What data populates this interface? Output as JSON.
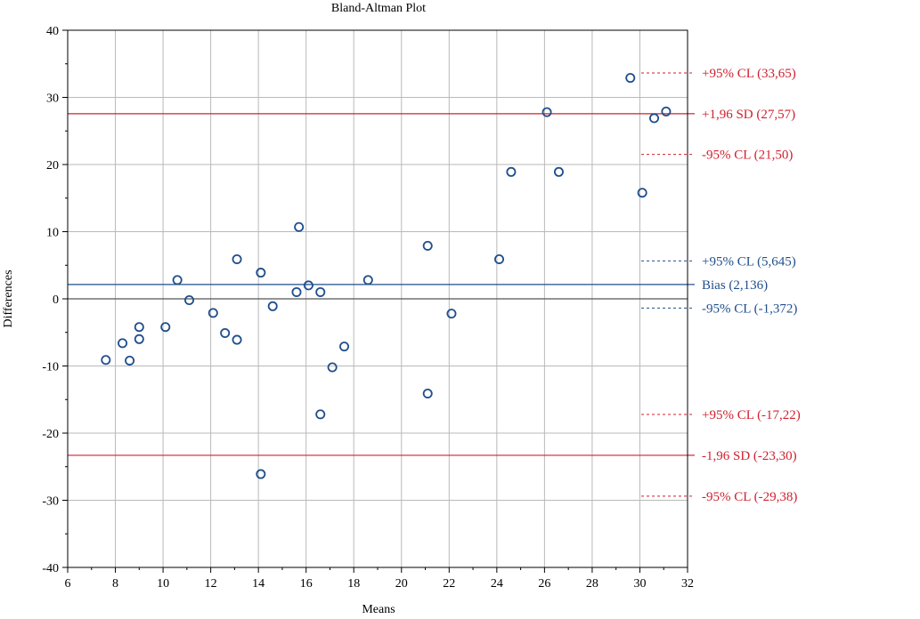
{
  "chart_data": {
    "type": "scatter",
    "title": "Bland-Altman Plot",
    "xlabel": "Means",
    "ylabel": "Differences",
    "xlim": [
      6,
      32
    ],
    "ylim": [
      -40,
      40
    ],
    "x_ticks": [
      6,
      8,
      10,
      12,
      14,
      16,
      18,
      20,
      22,
      24,
      26,
      28,
      30,
      32
    ],
    "y_ticks": [
      -40,
      -30,
      -20,
      -10,
      0,
      10,
      20,
      30,
      40
    ],
    "grid": true,
    "point_color": "#1f4e8c",
    "points": [
      {
        "x": 7.6,
        "y": -9.1
      },
      {
        "x": 8.3,
        "y": -6.6
      },
      {
        "x": 8.6,
        "y": -9.2
      },
      {
        "x": 9.0,
        "y": -4.2
      },
      {
        "x": 9.0,
        "y": -6.0
      },
      {
        "x": 10.1,
        "y": -4.2
      },
      {
        "x": 10.6,
        "y": 2.8
      },
      {
        "x": 11.1,
        "y": -0.2
      },
      {
        "x": 12.1,
        "y": -2.1
      },
      {
        "x": 12.6,
        "y": -5.1
      },
      {
        "x": 13.1,
        "y": -6.1
      },
      {
        "x": 13.1,
        "y": 5.9
      },
      {
        "x": 14.1,
        "y": 3.9
      },
      {
        "x": 14.1,
        "y": -26.1
      },
      {
        "x": 14.6,
        "y": -1.1
      },
      {
        "x": 15.6,
        "y": 1.0
      },
      {
        "x": 15.7,
        "y": 10.7
      },
      {
        "x": 16.1,
        "y": 2.0
      },
      {
        "x": 16.6,
        "y": 1.0
      },
      {
        "x": 16.6,
        "y": -17.2
      },
      {
        "x": 17.1,
        "y": -10.2
      },
      {
        "x": 17.6,
        "y": -7.1
      },
      {
        "x": 18.6,
        "y": 2.8
      },
      {
        "x": 21.1,
        "y": 7.9
      },
      {
        "x": 21.1,
        "y": -14.1
      },
      {
        "x": 22.1,
        "y": -2.2
      },
      {
        "x": 24.1,
        "y": 5.9
      },
      {
        "x": 24.6,
        "y": 18.9
      },
      {
        "x": 26.1,
        "y": 27.8
      },
      {
        "x": 26.6,
        "y": 18.9
      },
      {
        "x": 29.6,
        "y": 32.9
      },
      {
        "x": 30.1,
        "y": 15.8
      },
      {
        "x": 30.6,
        "y": 26.9
      },
      {
        "x": 31.1,
        "y": 27.9
      }
    ],
    "reference_lines": [
      {
        "label": "+95% CL (33,65)",
        "y": 33.65,
        "color": "#d0202e",
        "style": "dashed"
      },
      {
        "label": "+1,96 SD (27,57)",
        "y": 27.57,
        "color": "#d0202e",
        "style": "solid"
      },
      {
        "label": "-95% CL (21,50)",
        "y": 21.5,
        "color": "#d0202e",
        "style": "dashed"
      },
      {
        "label": "+95% CL (5,645)",
        "y": 5.645,
        "color": "#1f4e8c",
        "style": "dashed"
      },
      {
        "label": "Bias (2,136)",
        "y": 2.136,
        "color": "#1f4e8c",
        "style": "solid"
      },
      {
        "label": "-95% CL (-1,372)",
        "y": -1.372,
        "color": "#1f4e8c",
        "style": "dashed"
      },
      {
        "label": "+95% CL (-17,22)",
        "y": -17.22,
        "color": "#d0202e",
        "style": "dashed"
      },
      {
        "label": "-1,96 SD (-23,30)",
        "y": -23.3,
        "color": "#d0202e",
        "style": "solid"
      },
      {
        "label": "-95% CL (-29,38)",
        "y": -29.38,
        "color": "#d0202e",
        "style": "dashed"
      }
    ],
    "zero_line": {
      "y": 0,
      "color": "#555555"
    }
  }
}
